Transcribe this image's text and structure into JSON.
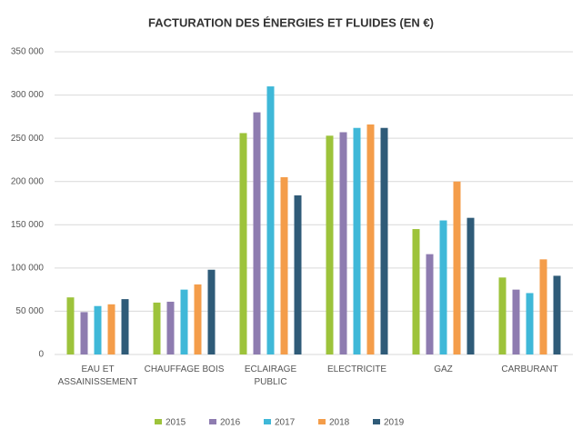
{
  "chart_data": {
    "type": "bar",
    "title": "FACTURATION DES ÉNERGIES ET FLUIDES (EN €)",
    "categories": [
      "EAU ET ASSAINISSEMENT",
      "CHAUFFAGE BOIS",
      "ECLAIRAGE PUBLIC",
      "ELECTRICITE",
      "GAZ",
      "CARBURANT"
    ],
    "series": [
      {
        "name": "2015",
        "color": "#9dc33b",
        "values": [
          66000,
          60000,
          256000,
          253000,
          145000,
          89000
        ]
      },
      {
        "name": "2016",
        "color": "#8e7cb0",
        "values": [
          49000,
          61000,
          280000,
          257000,
          116000,
          75000
        ]
      },
      {
        "name": "2017",
        "color": "#3fb8d8",
        "values": [
          56000,
          75000,
          310000,
          262000,
          155000,
          71000
        ]
      },
      {
        "name": "2018",
        "color": "#f49d4a",
        "values": [
          58000,
          81000,
          205000,
          266000,
          200000,
          110000
        ]
      },
      {
        "name": "2019",
        "color": "#2f5b78",
        "values": [
          64000,
          98000,
          184000,
          262000,
          158000,
          91000
        ]
      }
    ],
    "ylim": [
      0,
      350000
    ],
    "yticks": [
      0,
      {
        "value": 50000,
        "label": "50 000"
      },
      {
        "value": 100000,
        "label": "100 000"
      },
      {
        "value": 150000,
        "label": "150 000"
      },
      {
        "value": 200000,
        "label": "200 000"
      },
      {
        "value": 250000,
        "label": "250 000"
      },
      {
        "value": 300000,
        "label": "300 000"
      },
      {
        "value": 350000,
        "label": "350 000"
      }
    ],
    "grid": true,
    "legend": "bottom"
  }
}
